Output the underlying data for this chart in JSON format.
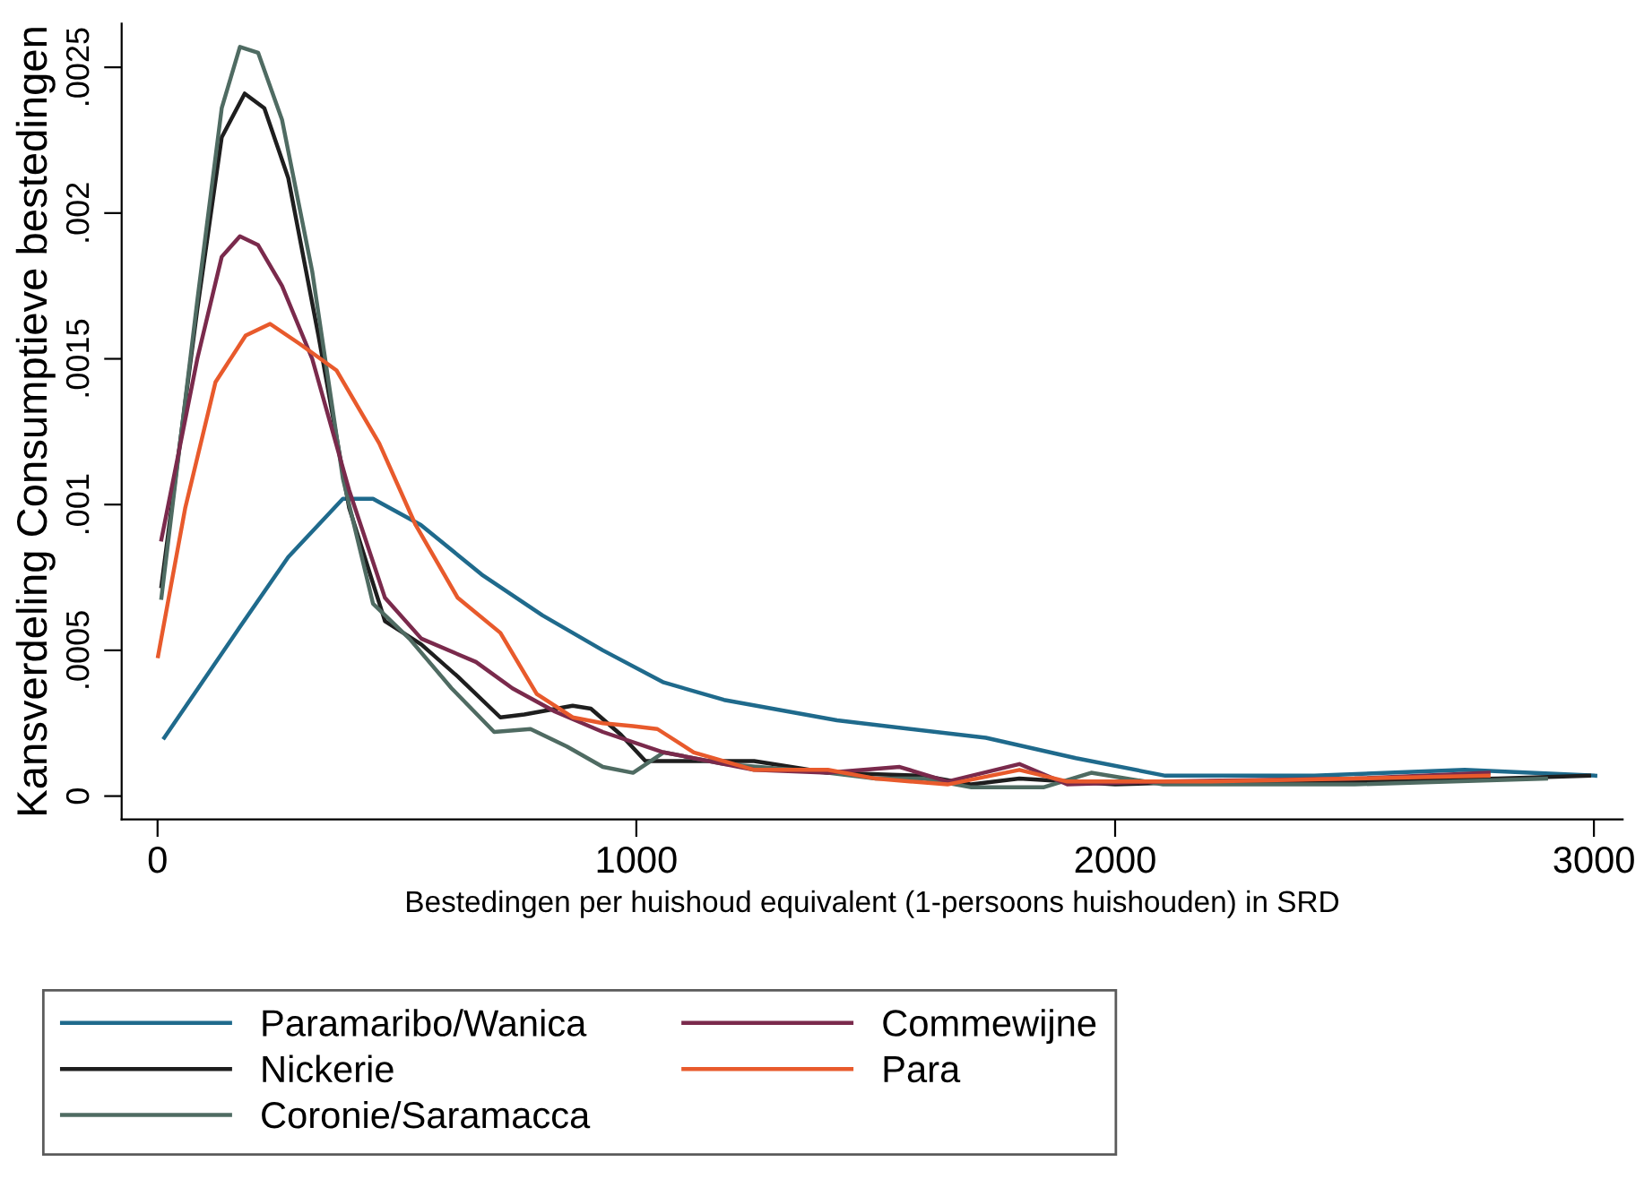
{
  "chart_data": {
    "type": "line",
    "xlabel": "Bestedingen per huishoud equivalent (1-persoons huishouden) in SRD",
    "ylabel": "Kansverdeling Consumptieve bestedingen",
    "xlim": [
      -75,
      3060
    ],
    "ylim": [
      -8e-05,
      0.00265
    ],
    "xticks": [
      0,
      1000,
      2000,
      3000
    ],
    "yticks": [
      {
        "value": 0,
        "label": "0"
      },
      {
        "value": 0.0005,
        "label": ".0005"
      },
      {
        "value": 0.001,
        "label": ".001"
      },
      {
        "value": 0.0015,
        "label": ".0015"
      },
      {
        "value": 0.002,
        "label": ".002"
      },
      {
        "value": 0.0025,
        "label": ".0025"
      }
    ],
    "grid": false,
    "legend": "bottom",
    "marker": "none",
    "line_style": "solid",
    "series": [
      {
        "name": "Paramaribo/Wanica",
        "color": "#1f6a8c",
        "x": [
          14,
          172,
          273,
          387,
          450,
          550,
          677,
          804,
          930,
          1057,
          1183,
          1419,
          1730,
          1918,
          2105,
          2416,
          2730,
          3003
        ],
        "values": [
          0.0002,
          0.00058,
          0.00082,
          0.00102,
          0.00102,
          0.00093,
          0.00076,
          0.00062,
          0.0005,
          0.00039,
          0.00033,
          0.00026,
          0.0002,
          0.00013,
          7e-05,
          7e-05,
          9e-05,
          7e-05
        ]
      },
      {
        "name": "Nickerie",
        "color": "#1e1e1e",
        "x": [
          8,
          83,
          134,
          182,
          223,
          273,
          336,
          400,
          475,
          551,
          627,
          716,
          766,
          867,
          905,
          968,
          1019,
          1120,
          1246,
          1400,
          1600,
          1700,
          1800,
          2000,
          2200,
          2500,
          2800,
          2990
        ],
        "values": [
          0.00072,
          0.00167,
          0.00226,
          0.00241,
          0.00236,
          0.00212,
          0.00158,
          0.00099,
          0.0006,
          0.00052,
          0.00041,
          0.00027,
          0.00028,
          0.00031,
          0.0003,
          0.00021,
          0.00012,
          0.00012,
          0.00012,
          8e-05,
          7e-05,
          4e-05,
          6e-05,
          4e-05,
          5e-05,
          5e-05,
          6e-05,
          7e-05
        ]
      },
      {
        "name": "Coronie/Saramacca",
        "color": "#4f6b62",
        "x": [
          8,
          83,
          134,
          172,
          210,
          260,
          323,
          387,
          450,
          526,
          614,
          703,
          779,
          855,
          930,
          993,
          1057,
          1183,
          1400,
          1500,
          1600,
          1700,
          1850,
          1950,
          2100,
          2500,
          2900
        ],
        "values": [
          0.00068,
          0.0017,
          0.00236,
          0.00257,
          0.00255,
          0.00232,
          0.0018,
          0.00109,
          0.00066,
          0.00054,
          0.00037,
          0.00022,
          0.00023,
          0.00017,
          0.0001,
          8e-05,
          0.00015,
          0.00011,
          8e-05,
          6e-05,
          6e-05,
          3e-05,
          3e-05,
          8e-05,
          4e-05,
          4e-05,
          6e-05
        ]
      },
      {
        "name": "Commewijne",
        "color": "#7a2a4c",
        "x": [
          8,
          83,
          134,
          172,
          210,
          260,
          323,
          400,
          475,
          551,
          665,
          741,
          830,
          930,
          1057,
          1246,
          1400,
          1550,
          1650,
          1800,
          1900,
          2100,
          2500,
          2780
        ],
        "values": [
          0.00088,
          0.0015,
          0.00185,
          0.00192,
          0.00189,
          0.00175,
          0.0015,
          0.00105,
          0.00068,
          0.00054,
          0.00046,
          0.00037,
          0.00029,
          0.00022,
          0.00015,
          9e-05,
          8e-05,
          0.0001,
          5e-05,
          0.00011,
          4e-05,
          5e-05,
          6e-05,
          8e-05
        ]
      },
      {
        "name": "Para",
        "color": "#e85a2c",
        "x": [
          1,
          58,
          121,
          184,
          235,
          298,
          374,
          463,
          539,
          627,
          716,
          792,
          867,
          930,
          993,
          1044,
          1120,
          1246,
          1400,
          1500,
          1650,
          1800,
          1900,
          2200,
          2500,
          2780
        ],
        "values": [
          0.00048,
          0.00099,
          0.00142,
          0.00158,
          0.00162,
          0.00155,
          0.00146,
          0.00121,
          0.00093,
          0.00068,
          0.00056,
          0.00035,
          0.00027,
          0.00025,
          0.00024,
          0.00023,
          0.00015,
          9e-05,
          9e-05,
          6e-05,
          4e-05,
          9e-05,
          5e-05,
          5e-05,
          6e-05,
          7e-05
        ]
      }
    ]
  }
}
